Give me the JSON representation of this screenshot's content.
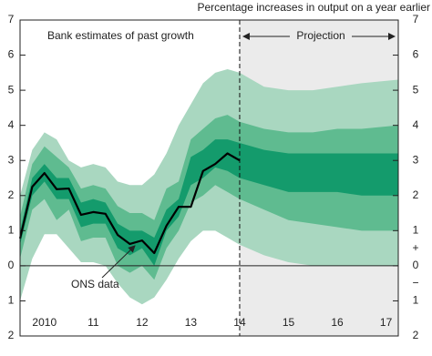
{
  "chart_data": {
    "type": "fan",
    "title": "Percentage increases in output on a year earlier",
    "past_label": "Bank estimates of past growth",
    "projection_label": "Projection",
    "sign_labels": [
      "+",
      "−"
    ],
    "x": [
      2010,
      2010.25,
      2010.5,
      2010.75,
      2011,
      2011.25,
      2011.5,
      2011.75,
      2012,
      2012.25,
      2012.5,
      2012.75,
      2013,
      2013.25,
      2013.5,
      2013.75,
      2014,
      2014.25,
      2014.5
    ],
    "series": [
      {
        "name": "ONS data",
        "color": "#000000",
        "values": [
          0.78,
          2.25,
          2.64,
          2.18,
          2.2,
          1.45,
          1.53,
          1.48,
          0.88,
          0.62,
          0.72,
          0.36,
          1.14,
          1.68,
          1.68,
          2.7,
          2.9,
          3.2,
          3.0
        ]
      }
    ],
    "band_x": [
      2010,
      2010.25,
      2010.5,
      2010.75,
      2011,
      2011.25,
      2011.5,
      2011.75,
      2012,
      2012.25,
      2012.5,
      2012.75,
      2013,
      2013.25,
      2013.5,
      2013.75,
      2014,
      2014.25,
      2014.5,
      2015,
      2015.5,
      2016,
      2016.5,
      2017,
      2017.75
    ],
    "bands": [
      {
        "color": "#a9d7c0",
        "upper": [
          2.0,
          3.3,
          3.8,
          3.6,
          3.0,
          2.8,
          2.9,
          2.8,
          2.4,
          2.3,
          2.3,
          2.6,
          3.2,
          4.0,
          4.6,
          5.2,
          5.5,
          5.6,
          5.5,
          5.1,
          5.0,
          5.0,
          5.1,
          5.2,
          5.3
        ],
        "lower": [
          -1.0,
          0.2,
          0.9,
          0.9,
          0.5,
          0.1,
          0.1,
          0.0,
          -0.5,
          -0.9,
          -1.1,
          -0.9,
          -0.4,
          0.2,
          0.7,
          1.0,
          1.0,
          0.8,
          0.6,
          0.3,
          0.1,
          0.0,
          0.0,
          0.0,
          0.0
        ]
      },
      {
        "color": "#5fbb90",
        "upper": [
          1.4,
          2.9,
          3.4,
          3.1,
          2.8,
          2.2,
          2.3,
          2.2,
          1.7,
          1.5,
          1.5,
          1.3,
          2.2,
          2.4,
          3.6,
          3.9,
          4.2,
          4.3,
          4.1,
          3.9,
          3.8,
          3.8,
          3.9,
          3.9,
          4.0
        ],
        "lower": [
          0.2,
          1.6,
          1.9,
          1.3,
          1.6,
          0.7,
          0.8,
          0.8,
          0.0,
          -0.2,
          0.0,
          -0.4,
          0.5,
          1.0,
          1.8,
          2.0,
          2.3,
          2.1,
          1.9,
          1.6,
          1.3,
          1.2,
          1.1,
          1.0,
          1.0
        ]
      },
      {
        "color": "#149b6c",
        "upper": [
          1.0,
          2.5,
          2.9,
          2.5,
          2.5,
          1.8,
          1.9,
          1.8,
          1.2,
          1.0,
          1.0,
          0.8,
          1.6,
          1.9,
          3.1,
          3.3,
          3.6,
          3.6,
          3.5,
          3.3,
          3.2,
          3.2,
          3.2,
          3.2,
          3.2
        ],
        "lower": [
          0.6,
          2.0,
          2.4,
          1.9,
          1.9,
          1.1,
          1.2,
          1.2,
          0.5,
          0.3,
          0.5,
          0.0,
          1.0,
          1.4,
          2.3,
          2.5,
          2.8,
          2.7,
          2.5,
          2.3,
          2.1,
          2.1,
          2.1,
          2.0,
          2.0
        ]
      }
    ],
    "projection_start": 2014.5,
    "projection_color": "#ebebeb",
    "xlim": [
      2010,
      2017.75
    ],
    "ylim": [
      -2,
      7
    ],
    "xticks": [
      {
        "value": 2010.5,
        "label": "2010"
      },
      {
        "value": 2011.5,
        "label": "11"
      },
      {
        "value": 2012.5,
        "label": "12"
      },
      {
        "value": 2013.5,
        "label": "13"
      },
      {
        "value": 2014.5,
        "label": "14"
      },
      {
        "value": 2015.5,
        "label": "15"
      },
      {
        "value": 2016.5,
        "label": "16"
      },
      {
        "value": 2017.5,
        "label": "17"
      }
    ],
    "yticks": [
      {
        "value": -2,
        "label": "2"
      },
      {
        "value": -1,
        "label": "1"
      },
      0,
      1,
      2,
      3,
      4,
      5,
      6,
      7
    ]
  }
}
